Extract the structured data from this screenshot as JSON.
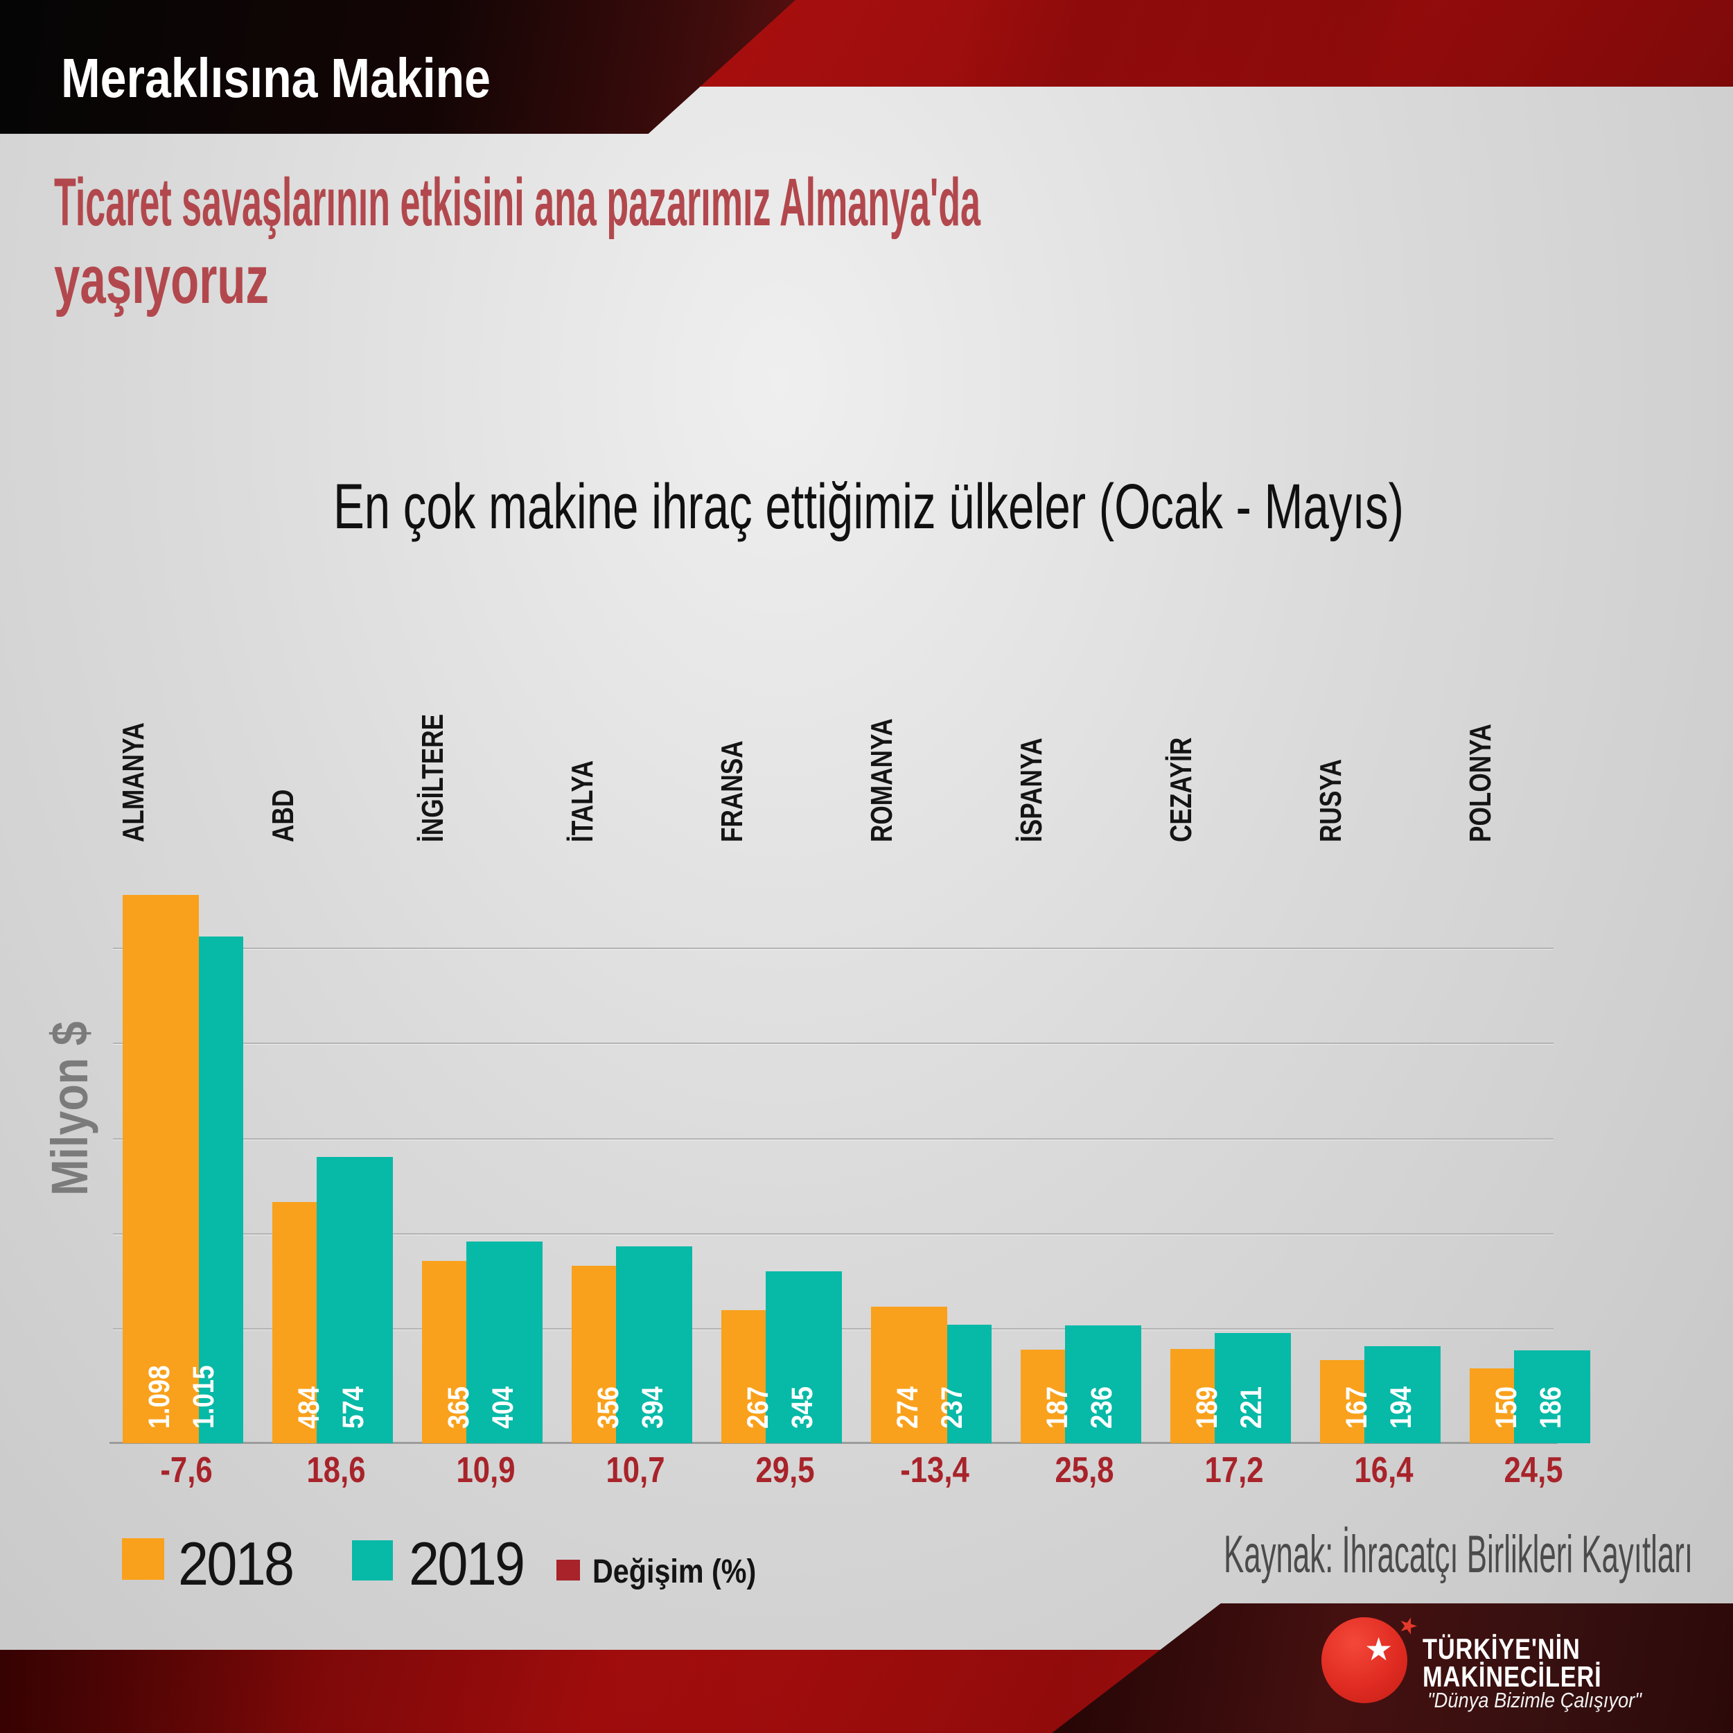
{
  "banner": {
    "badge": "Meraklısına Makine"
  },
  "title": {
    "line1": "Ticaret savaşlarının etkisini ana pazarımız Almanya'da",
    "line2": "yaşıyoruz",
    "color": "#B2484D"
  },
  "chart": {
    "title": "En çok makine ihraç ettiğimiz ülkeler (Ocak - Mayıs)",
    "y_axis_label": "Milyon $",
    "source": "Kaynak: İhracatçı Birlikleri Kayıtları"
  },
  "legend": {
    "label_2018": "2018",
    "label_2019": "2019",
    "label_change": "Değişim (%)"
  },
  "chart_data": {
    "type": "bar",
    "title": "En çok makine ihraç ettiğimiz ülkeler (Ocak - Mayıs)",
    "ylabel": "Milyon $",
    "categories": [
      "ALMANYA",
      "ABD",
      "İNGİLTERE",
      "İTALYA",
      "FRANSA",
      "ROMANYA",
      "İSPANYA",
      "CEZAYİR",
      "RUSYA",
      "POLONYA"
    ],
    "series": [
      {
        "name": "2018",
        "color": "#F9A11C",
        "values": [
          1098,
          484,
          365,
          356,
          267,
          274,
          187,
          189,
          167,
          150
        ],
        "labels": [
          "1.098",
          "484",
          "365",
          "356",
          "267",
          "274",
          "187",
          "189",
          "167",
          "150"
        ]
      },
      {
        "name": "2019",
        "color": "#07B9A7",
        "values": [
          1015,
          574,
          404,
          394,
          345,
          237,
          236,
          221,
          194,
          186
        ],
        "labels": [
          "1.015",
          "574",
          "404",
          "394",
          "345",
          "237",
          "236",
          "221",
          "194",
          "186"
        ]
      }
    ],
    "change_series": {
      "name": "Değişim (%)",
      "color": "#A8232A",
      "labels": [
        "-7,6",
        "18,6",
        "10,9",
        "10,7",
        "29,5",
        "-13,4",
        "25,8",
        "17,2",
        "16,4",
        "24,5"
      ]
    },
    "gridline_values": [
      200,
      400,
      600,
      800,
      1000
    ],
    "ylim": [
      0,
      1200
    ],
    "grid": true,
    "legend_position": "bottom-left",
    "unit": "Milyon $"
  },
  "logo": {
    "line1": "TÜRKİYE'NİN",
    "line2": "MAKİNECİLERİ",
    "slogan": "\"Dünya Bizimle Çalışıyor\""
  },
  "colors": {
    "orange_2018": "#F9A11C",
    "teal_2019": "#07B9A7",
    "change_red": "#A8232A",
    "title_red": "#B2484D",
    "banner_red": "#A90E0E",
    "source_gray": "#4B4B4B"
  }
}
